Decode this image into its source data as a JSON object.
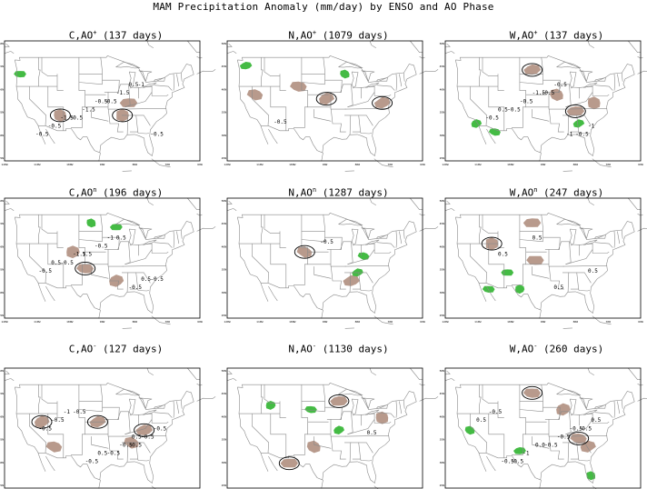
{
  "title": "MAM Precipitation Anomaly (mm/day) by ENSO and AO Phase",
  "colors": {
    "dry": "#b89a8c",
    "wet": "#44bb44",
    "map_lines": "#8a8a8a",
    "contour": "#000000"
  },
  "tick_labels": {
    "x": [
      "120W",
      "110W",
      "100W",
      "90W",
      "80W",
      "70W",
      "60W"
    ],
    "y": [
      "50N",
      "45N",
      "40N",
      "35N",
      "30N",
      "25N"
    ]
  },
  "panels": [
    {
      "enso": "C",
      "ao": "+",
      "days": "137",
      "labels": [
        "-0.5",
        "-0.5",
        "-0.5",
        "-1",
        "-0.5",
        "-1.5",
        "-1.5",
        "-0.5",
        "-1.5",
        "-0.5",
        "0.5"
      ],
      "dry": [
        [
          -110,
          35
        ],
        [
          -88,
          38
        ],
        [
          -90,
          35
        ]
      ],
      "wet": [
        [
          -123,
          45
        ]
      ]
    },
    {
      "enso": "N",
      "ao": "+",
      "days": "1079",
      "labels": [
        "-0.5"
      ],
      "dry": [
        [
          -105,
          42
        ],
        [
          -96,
          39
        ],
        [
          -119,
          40
        ],
        [
          -78,
          38
        ]
      ],
      "wet": [
        [
          -122,
          47
        ],
        [
          -90,
          45
        ]
      ]
    },
    {
      "enso": "W",
      "ao": "+",
      "days": "137",
      "labels": [
        "-0.5",
        "-0.5",
        "-0.5",
        "-0.5",
        "-0.5",
        "-0.5",
        "-1",
        "0.5",
        "-1.5",
        "-1"
      ],
      "dry": [
        [
          -100,
          46
        ],
        [
          -92,
          40
        ],
        [
          -86,
          36
        ],
        [
          -80,
          38
        ]
      ],
      "wet": [
        [
          -118,
          33
        ],
        [
          -112,
          31
        ],
        [
          -85,
          33
        ]
      ]
    },
    {
      "enso": "C",
      "ao": "n",
      "days": "196",
      "labels": [
        "1.5",
        "0.5",
        "-0.5",
        "-0.5",
        "-0.5",
        "-0.5",
        "-0.5",
        "-1.5",
        "-1",
        "0.5",
        "0.5"
      ],
      "dry": [
        [
          -106,
          40
        ],
        [
          -102,
          36
        ],
        [
          -92,
          33
        ]
      ],
      "wet": [
        [
          -100,
          47
        ],
        [
          -92,
          46
        ]
      ]
    },
    {
      "enso": "N",
      "ao": "n",
      "days": "1287",
      "labels": [
        "-0.5"
      ],
      "dry": [
        [
          -103,
          40
        ],
        [
          -88,
          33
        ]
      ],
      "wet": [
        [
          -84,
          39
        ],
        [
          -86,
          35
        ]
      ]
    },
    {
      "enso": "W",
      "ao": "n",
      "days": "247",
      "labels": [
        "0.5",
        "0.5",
        "0.5",
        "0.5"
      ],
      "dry": [
        [
          -100,
          47
        ],
        [
          -113,
          42
        ],
        [
          -99,
          38
        ]
      ],
      "wet": [
        [
          -108,
          35
        ],
        [
          -104,
          31
        ],
        [
          -114,
          31
        ]
      ]
    },
    {
      "enso": "C",
      "ao": "-",
      "days": "127",
      "labels": [
        "-0.5",
        "-0.5",
        "-0.5",
        "-0.5",
        "-0.5",
        "-0.5",
        "-0.5",
        "-0.5",
        "-0.5",
        "-1",
        "0.5",
        "0.5"
      ],
      "dry": [
        [
          -116,
          40
        ],
        [
          -112,
          34
        ],
        [
          -98,
          40
        ],
        [
          -87,
          35
        ],
        [
          -83,
          38
        ]
      ],
      "wet": []
    },
    {
      "enso": "N",
      "ao": "-",
      "days": "1130",
      "labels": [
        "0.5"
      ],
      "dry": [
        [
          -100,
          34
        ],
        [
          -92,
          45
        ],
        [
          -78,
          41
        ],
        [
          -108,
          30
        ]
      ],
      "wet": [
        [
          -114,
          44
        ],
        [
          -101,
          43
        ],
        [
          -92,
          38
        ]
      ]
    },
    {
      "enso": "W",
      "ao": "-",
      "days": "260",
      "labels": [
        "0.5",
        "-0.5",
        "-0.5",
        "-0.5",
        "-0.5",
        "-1",
        "-0.5",
        "0.5",
        "-0.5",
        "0.0",
        "-0.5"
      ],
      "dry": [
        [
          -100,
          47
        ],
        [
          -90,
          43
        ],
        [
          -85,
          36
        ],
        [
          -82,
          34
        ]
      ],
      "wet": [
        [
          -120,
          38
        ],
        [
          -104,
          33
        ],
        [
          -81,
          27
        ]
      ]
    }
  ]
}
